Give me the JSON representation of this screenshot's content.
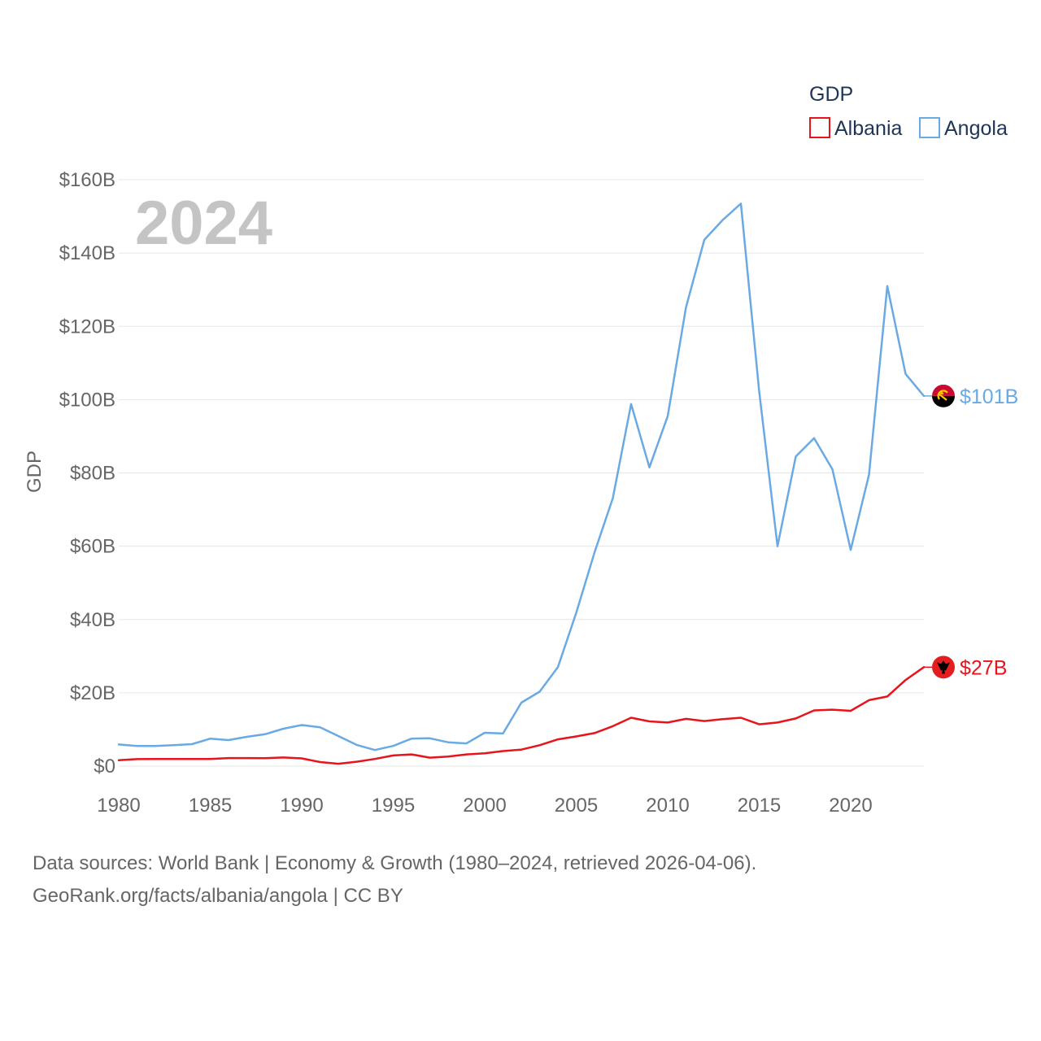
{
  "chart_data": {
    "type": "line",
    "title": "",
    "year_label": "2024",
    "ylabel": "GDP",
    "xlabel": "",
    "xlim": [
      1980,
      2024
    ],
    "ylim": [
      0,
      160
    ],
    "y_unit": "billion USD",
    "x_ticks": [
      1980,
      1985,
      1990,
      1995,
      2000,
      2005,
      2010,
      2015,
      2020
    ],
    "x_tick_labels": [
      "1980",
      "1985",
      "1990",
      "1995",
      "2000",
      "2005",
      "2010",
      "2015",
      "2020"
    ],
    "y_ticks": [
      0,
      20,
      40,
      60,
      80,
      100,
      120,
      140,
      160
    ],
    "y_tick_labels": [
      "$0",
      "$20B",
      "$40B",
      "$60B",
      "$80B",
      "$100B",
      "$120B",
      "$140B",
      "$160B"
    ],
    "grid": true,
    "legend": {
      "title": "GDP",
      "position": "top-right"
    },
    "x": [
      1980,
      1981,
      1982,
      1983,
      1984,
      1985,
      1986,
      1987,
      1988,
      1989,
      1990,
      1991,
      1992,
      1993,
      1994,
      1995,
      1996,
      1997,
      1998,
      1999,
      2000,
      2001,
      2002,
      2003,
      2004,
      2005,
      2006,
      2007,
      2008,
      2009,
      2010,
      2011,
      2012,
      2013,
      2014,
      2015,
      2016,
      2017,
      2018,
      2019,
      2020,
      2021,
      2022,
      2023,
      2024
    ],
    "series": [
      {
        "name": "Albania",
        "color": "#e8141c",
        "end_label": "$27B",
        "flag_icon": "albania-flag-icon",
        "values": [
          1.6,
          1.9,
          1.95,
          1.95,
          1.95,
          1.95,
          2.2,
          2.2,
          2.15,
          2.35,
          2.1,
          1.1,
          0.65,
          1.2,
          1.95,
          2.9,
          3.2,
          2.3,
          2.6,
          3.2,
          3.5,
          4.1,
          4.5,
          5.7,
          7.3,
          8.1,
          9.0,
          10.9,
          13.2,
          12.2,
          11.9,
          12.9,
          12.3,
          12.8,
          13.2,
          11.4,
          11.9,
          13.0,
          15.2,
          15.4,
          15.1,
          18.0,
          19.0,
          23.5,
          27.0
        ]
      },
      {
        "name": "Angola",
        "color": "#6aaae4",
        "end_label": "$101B",
        "flag_icon": "angola-flag-icon",
        "values": [
          5.9,
          5.5,
          5.5,
          5.7,
          6.0,
          7.5,
          7.1,
          8.0,
          8.7,
          10.2,
          11.2,
          10.6,
          8.2,
          5.8,
          4.4,
          5.5,
          7.5,
          7.6,
          6.5,
          6.2,
          9.1,
          8.9,
          17.3,
          20.3,
          27.0,
          41.8,
          58.3,
          73.1,
          98.8,
          81.5,
          95.5,
          125.2,
          143.6,
          149.0,
          153.5,
          102.2,
          60.0,
          84.5,
          89.5,
          81.0,
          59.0,
          79.5,
          131.0,
          107.0,
          101.0
        ]
      }
    ]
  },
  "footer": {
    "line1": "Data sources: World Bank | Economy & Growth (1980–2024, retrieved 2026-04-06).",
    "line2": "GeoRank.org/facts/albania/angola | CC BY"
  }
}
